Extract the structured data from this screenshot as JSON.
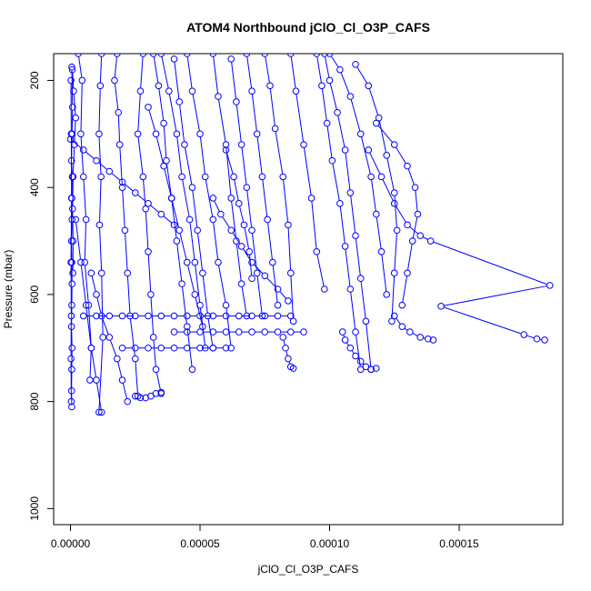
{
  "chart_data": {
    "type": "scatter",
    "title": "ATOM4 Northbound jClO_Cl_O3P_CAFS",
    "xlabel": "jClO_Cl_O3P_CAFS",
    "ylabel": "Pressure (mbar)",
    "xlim": [
      -6.5e-06,
      0.00019
    ],
    "ylim": [
      1030,
      150
    ],
    "y_reversed": true,
    "x_ticks": [
      {
        "value": 0.0,
        "label": "0.00000"
      },
      {
        "value": 5e-05,
        "label": "0.00005"
      },
      {
        "value": 0.0001,
        "label": "0.00010"
      },
      {
        "value": 0.00015,
        "label": "0.00015"
      }
    ],
    "y_ticks": [
      {
        "value": 200,
        "label": "200"
      },
      {
        "value": 400,
        "label": "400"
      },
      {
        "value": 600,
        "label": "600"
      },
      {
        "value": 800,
        "label": "800"
      },
      {
        "value": 1000,
        "label": "1000"
      }
    ],
    "grid": false,
    "marker": "open-circle",
    "color": "#0000ff",
    "series": [
      {
        "x": [
          5e-07,
          8e-07,
          6e-07,
          4e-07,
          7e-07,
          5e-07,
          6e-07,
          4e-07,
          5e-07,
          6e-07,
          5e-07,
          4e-07,
          6e-07,
          5e-07,
          4e-07,
          5e-07
        ],
        "y": [
          175,
          250,
          300,
          350,
          380,
          420,
          460,
          500,
          540,
          580,
          620,
          660,
          700,
          740,
          780,
          810
        ]
      },
      {
        "x": [
          7e-07,
          1.2e-06,
          2e-06,
          1.5e-06,
          1e-06,
          8e-07,
          1e-06,
          9e-07
        ],
        "y": [
          180,
          220,
          270,
          320,
          380,
          440,
          500,
          560
        ]
      },
      {
        "x": [
          2e-07,
          3e-07,
          4e-07,
          2e-07,
          3e-07,
          2e-07,
          3e-07
        ],
        "y": [
          200,
          300,
          420,
          540,
          640,
          720,
          800
        ]
      },
      {
        "x": [
          3e-06,
          4.5e-06,
          4e-06,
          5e-06,
          6e-06,
          5.5e-06,
          7e-06,
          8e-06,
          7.5e-06
        ],
        "y": [
          150,
          200,
          300,
          380,
          460,
          540,
          620,
          700,
          760
        ]
      },
      {
        "x": [
          1.2e-05,
          1.15e-05,
          1.1e-05,
          1.18e-05,
          1.12e-05,
          1.2e-05,
          1.25e-05,
          1.1e-05
        ],
        "y": [
          150,
          210,
          300,
          380,
          470,
          560,
          680,
          820
        ]
      },
      {
        "x": [
          1.8e-05,
          1.7e-05,
          1.85e-05,
          1.9e-05,
          2e-05,
          2.1e-05,
          2.2e-05,
          2.3e-05,
          2.5e-05,
          2.6e-05
        ],
        "y": [
          150,
          200,
          260,
          320,
          400,
          480,
          560,
          640,
          720,
          790
        ]
      },
      {
        "x": [
          2.8e-05,
          2.7e-05,
          2.6e-05,
          2.8e-05,
          2.9e-05,
          3e-05,
          3.1e-05,
          3.2e-05,
          3.3e-05,
          3.5e-05
        ],
        "y": [
          150,
          220,
          300,
          380,
          440,
          520,
          600,
          680,
          740,
          785
        ]
      },
      {
        "x": [
          3.2e-05,
          3.4e-05,
          3.6e-05,
          3.7e-05,
          3.9e-05,
          4.1e-05,
          4.3e-05,
          4.5e-05,
          4.7e-05
        ],
        "y": [
          150,
          210,
          280,
          350,
          420,
          500,
          580,
          660,
          740
        ]
      },
      {
        "x": [
          3.5e-05,
          3.8e-05,
          4.1e-05,
          4.3e-05,
          4.6e-05,
          4.8e-05,
          5e-05,
          5.2e-05
        ],
        "y": [
          150,
          220,
          300,
          380,
          460,
          540,
          620,
          700
        ]
      },
      {
        "x": [
          4e-05,
          4.2e-05,
          4.4e-05,
          4.7e-05,
          4.9e-05,
          5.1e-05,
          5.3e-05,
          5.5e-05
        ],
        "y": [
          160,
          240,
          320,
          400,
          480,
          560,
          640,
          700
        ]
      },
      {
        "x": [
          4.5e-05,
          4.7e-05,
          5e-05,
          5.2e-05,
          5.5e-05,
          5.7e-05,
          6e-05,
          6.2e-05
        ],
        "y": [
          150,
          220,
          300,
          380,
          460,
          540,
          620,
          700
        ]
      },
      {
        "x": [
          5.5e-05,
          5.7e-05,
          6e-05,
          6.2e-05,
          6.4e-05,
          6.6e-05,
          6.8e-05
        ],
        "y": [
          150,
          230,
          320,
          420,
          500,
          580,
          640
        ]
      },
      {
        "x": [
          6.2e-05,
          6.4e-05,
          6.6e-05,
          6.8e-05,
          7e-05,
          7.2e-05,
          7.4e-05
        ],
        "y": [
          160,
          240,
          320,
          400,
          480,
          560,
          640
        ]
      },
      {
        "x": [
          6.8e-05,
          7e-05,
          7.2e-05,
          7.4e-05,
          7.6e-05,
          7.8e-05,
          8e-05
        ],
        "y": [
          150,
          220,
          300,
          380,
          460,
          540,
          620
        ]
      },
      {
        "x": [
          7.5e-05,
          7.7e-05,
          7.9e-05,
          8.2e-05,
          8.4e-05,
          8.5e-05,
          8.6e-05
        ],
        "y": [
          150,
          210,
          290,
          380,
          470,
          560,
          650
        ]
      },
      {
        "x": [
          8.5e-05,
          8.7e-05,
          9e-05,
          9.3e-05,
          9.5e-05,
          9.8e-05
        ],
        "y": [
          150,
          220,
          320,
          420,
          520,
          590
        ]
      },
      {
        "x": [
          9.5e-05,
          9.7e-05,
          9.9e-05,
          0.000101,
          0.000104,
          0.000106,
          0.000108,
          0.00011,
          0.000112
        ],
        "y": [
          150,
          210,
          280,
          350,
          430,
          510,
          590,
          670,
          740
        ]
      },
      {
        "x": [
          9.8e-05,
          0.0001,
          0.000103,
          0.000106,
          0.000108,
          0.00011,
          0.000112,
          0.000114,
          0.000116
        ],
        "y": [
          150,
          200,
          260,
          330,
          410,
          490,
          570,
          650,
          740
        ]
      },
      {
        "x": [
          0.0001,
          0.000104,
          0.000108,
          0.000112,
          0.000116,
          0.000118,
          0.00012,
          0.000122
        ],
        "y": [
          150,
          180,
          230,
          300,
          380,
          450,
          520,
          600
        ]
      },
      {
        "x": [
          0.00011,
          0.000115,
          0.000119,
          0.000122,
          0.000125,
          0.000126,
          0.000125,
          0.000124
        ],
        "y": [
          170,
          210,
          270,
          340,
          410,
          480,
          560,
          650
        ]
      },
      {
        "x": [
          0.000118,
          0.000125,
          0.00013,
          0.000133,
          0.000134,
          0.000132,
          0.00013,
          0.000128
        ],
        "y": [
          280,
          320,
          360,
          400,
          450,
          500,
          560,
          620
        ]
      },
      {
        "x": [
          0.000115,
          0.00012,
          0.000125,
          0.00013,
          0.000135,
          0.000139,
          0.000185,
          0.000143,
          0.000175,
          0.00018,
          0.000183
        ],
        "y": [
          330,
          380,
          430,
          470,
          490,
          500,
          583,
          622,
          675,
          683,
          685
        ]
      },
      {
        "x": [
          0.000125,
          0.000128,
          0.000131,
          0.000135,
          0.000138,
          0.00014
        ],
        "y": [
          640,
          660,
          670,
          680,
          683,
          685
        ]
      },
      {
        "x": [
          5e-06,
          1e-05,
          1.5e-05,
          2e-05,
          2.5e-05,
          3e-05,
          3.5e-05,
          4e-05,
          4.5e-05,
          5e-05,
          5.5e-05,
          6e-05,
          6.5e-05,
          7e-05,
          7.5e-05,
          8e-05,
          8.5e-05
        ],
        "y": [
          640,
          640,
          640,
          640,
          640,
          640,
          640,
          640,
          640,
          640,
          640,
          640,
          640,
          640,
          640,
          640,
          640
        ]
      },
      {
        "x": [
          4e-05,
          4.5e-05,
          5e-05,
          5.5e-05,
          6e-05,
          6.5e-05,
          7e-05,
          7.5e-05,
          8e-05,
          8.5e-05,
          9e-05
        ],
        "y": [
          670,
          670,
          670,
          670,
          670,
          670,
          670,
          670,
          670,
          670,
          670
        ]
      },
      {
        "x": [
          2e-05,
          2.5e-05,
          3e-05,
          3.5e-05,
          4e-05,
          4.5e-05,
          5e-05,
          5.5e-05,
          6e-05
        ],
        "y": [
          700,
          700,
          700,
          700,
          700,
          700,
          700,
          700,
          700
        ]
      },
      {
        "x": [
          2.5e-05,
          2.7e-05,
          2.9e-05,
          3.1e-05,
          3.3e-05,
          3.5e-05
        ],
        "y": [
          790,
          793,
          793,
          790,
          785,
          783
        ]
      },
      {
        "x": [
          8.2e-05,
          8.3e-05,
          8.4e-05,
          8.5e-05,
          8.6e-05
        ],
        "y": [
          680,
          700,
          720,
          735,
          738
        ]
      },
      {
        "x": [
          0.000105,
          0.000106,
          0.000108,
          0.00011,
          0.000112,
          0.000114,
          0.000116,
          0.000118
        ],
        "y": [
          670,
          685,
          700,
          715,
          725,
          735,
          740,
          738
        ]
      },
      {
        "x": [
          0.0,
          5e-06,
          1e-05,
          1.5e-05,
          2e-05,
          2.5e-05,
          3e-05,
          3.5e-05,
          4e-05
        ],
        "y": [
          310,
          330,
          350,
          370,
          390,
          410,
          430,
          450,
          470
        ]
      },
      {
        "x": [
          3e-05,
          3.3e-05,
          3.6e-05,
          3.9e-05,
          4.2e-05,
          4.5e-05,
          4.8e-05,
          5.1e-05
        ],
        "y": [
          250,
          300,
          360,
          420,
          480,
          540,
          600,
          660
        ]
      },
      {
        "x": [
          6e-05,
          6.3e-05,
          6.5e-05,
          6.7e-05,
          6.9e-05,
          7e-05
        ],
        "y": [
          330,
          380,
          430,
          470,
          520,
          570
        ]
      },
      {
        "x": [
          5.5e-05,
          5.8e-05,
          6.2e-05,
          6.6e-05,
          7e-05,
          7.5e-05,
          8e-05,
          8.4e-05
        ],
        "y": [
          420,
          450,
          480,
          510,
          540,
          565,
          590,
          612
        ]
      },
      {
        "x": [
          8e-06,
          1e-05,
          1.2e-05,
          1.5e-05,
          1.8e-05,
          2e-05,
          2.2e-05
        ],
        "y": [
          560,
          600,
          640,
          680,
          720,
          760,
          800
        ]
      },
      {
        "x": [
          2e-06,
          4e-06,
          6e-06,
          8e-06,
          1e-05,
          1.2e-05
        ],
        "y": [
          460,
          540,
          620,
          700,
          760,
          820
        ]
      }
    ]
  }
}
